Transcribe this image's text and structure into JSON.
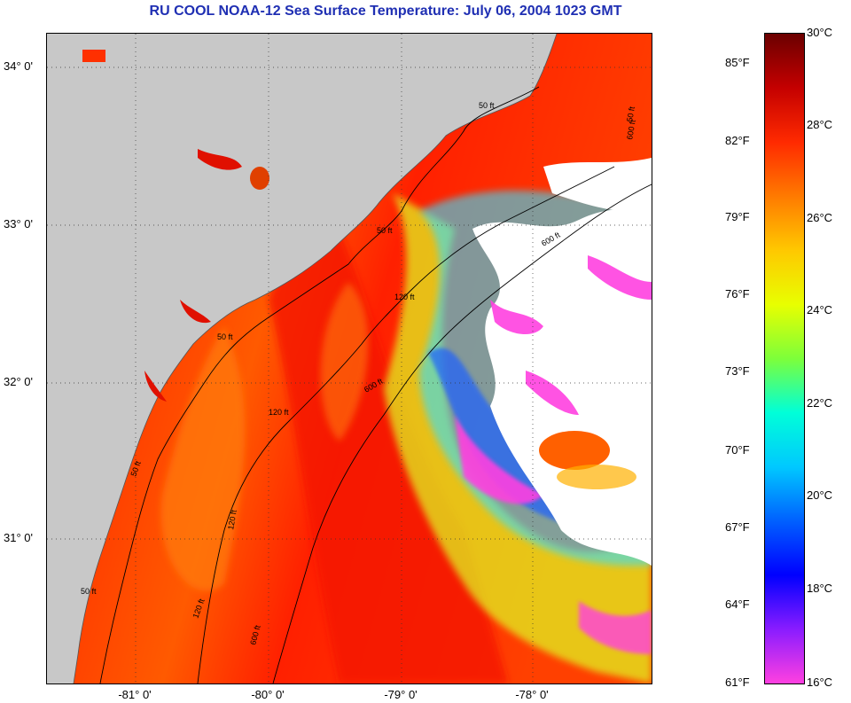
{
  "title": "RU COOL  NOAA-12  Sea Surface Temperature:  July 06, 2004 1023 GMT",
  "latitude_labels": [
    "34° 0'",
    "33° 0'",
    "32° 0'",
    "31° 0'"
  ],
  "longitude_labels": [
    "-81° 0'",
    "-80° 0'",
    "-79° 0'",
    "-78° 0'"
  ],
  "colorbar": {
    "fahrenheit_labels": [
      "85°F",
      "82°F",
      "79°F",
      "76°F",
      "73°F",
      "70°F",
      "67°F",
      "64°F",
      "61°F"
    ],
    "celsius_labels": [
      "30°C",
      "28°C",
      "26°C",
      "24°C",
      "22°C",
      "20°C",
      "18°C",
      "16°C"
    ],
    "colors": [
      "#6b0000",
      "#c40000",
      "#ff2a00",
      "#ff7a00",
      "#ffc800",
      "#e8ff00",
      "#7dff3a",
      "#00ffd8",
      "#00c8ff",
      "#0060ff",
      "#0000ff",
      "#8a1cff",
      "#ff40e0"
    ]
  },
  "contour_labels": [
    "50 ft",
    "50 ft",
    "50 ft",
    "120 ft",
    "600 ft",
    "50 ft",
    "120 ft",
    "600 ft",
    "50 ft",
    "120 ft",
    "120 ft",
    "600 ft",
    "600 ft",
    "50 ft"
  ],
  "colors": {
    "land": "#c8c8c8",
    "cloud": "#ffffff",
    "title": "#1f2fb3"
  }
}
